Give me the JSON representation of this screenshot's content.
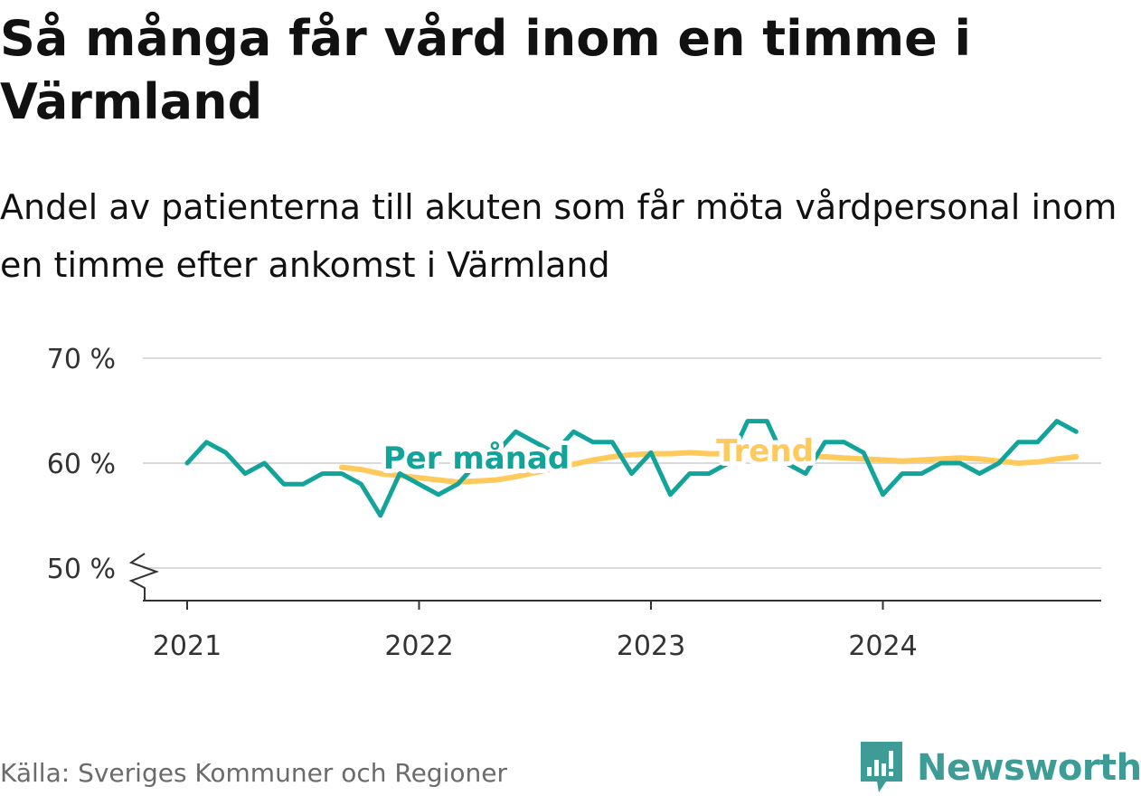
{
  "title": "Så många får vård inom en timme i Värmland",
  "subtitle": "Andel av patienterna till akuten som får möta vårdpersonal inom en timme efter ankomst i Värmland",
  "source": "Källa: Sveriges Kommuner och Regioner",
  "brand": {
    "name": "Newsworthy",
    "icon": "bar-chart-speech-bubble-icon",
    "color": "#3d9c96"
  },
  "colors": {
    "monthly": "#12a39a",
    "trend": "#ffc95c",
    "grid": "#d9d9d9",
    "axis": "#333333"
  },
  "chart_data": {
    "type": "line",
    "title": "Så många får vård inom en timme i Värmland",
    "subtitle": "Andel av patienterna till akuten som får möta vårdpersonal inom en timme efter ankomst i Värmland",
    "xlabel": "",
    "ylabel": "",
    "ylim": [
      50,
      70
    ],
    "y_ticks": [
      50,
      60,
      70
    ],
    "y_tick_labels": [
      "50 %",
      "60 %",
      "70 %"
    ],
    "y_axis_break": true,
    "x_ticks": [
      "2021",
      "2022",
      "2023",
      "2024"
    ],
    "grid": "horizontal",
    "legend": "inline labels",
    "series": [
      {
        "name": "Per månad",
        "color": "#12a39a",
        "x": [
          "2021-01",
          "2021-02",
          "2021-03",
          "2021-04",
          "2021-05",
          "2021-06",
          "2021-07",
          "2021-08",
          "2021-09",
          "2021-10",
          "2021-11",
          "2021-12",
          "2022-01",
          "2022-02",
          "2022-03",
          "2022-04",
          "2022-05",
          "2022-06",
          "2022-07",
          "2022-08",
          "2022-09",
          "2022-10",
          "2022-11",
          "2022-12",
          "2023-01",
          "2023-02",
          "2023-03",
          "2023-04",
          "2023-05",
          "2023-06",
          "2023-07",
          "2023-08",
          "2023-09",
          "2023-10",
          "2023-11",
          "2023-12",
          "2024-01",
          "2024-02",
          "2024-03",
          "2024-04",
          "2024-05",
          "2024-06",
          "2024-07",
          "2024-08",
          "2024-09",
          "2024-10",
          "2024-11"
        ],
        "values": [
          60,
          62,
          61,
          59,
          60,
          58,
          58,
          59,
          59,
          58,
          55,
          59,
          58,
          57,
          58,
          60,
          61,
          63,
          62,
          61,
          63,
          62,
          62,
          59,
          61,
          57,
          59,
          59,
          60,
          64,
          64,
          60,
          59,
          62,
          62,
          61,
          57,
          59,
          59,
          60,
          60,
          59,
          60,
          62,
          62,
          64,
          63
        ]
      },
      {
        "name": "Trend",
        "color": "#ffc95c",
        "x": [
          "2021-09",
          "2021-10",
          "2021-11",
          "2021-12",
          "2022-01",
          "2022-02",
          "2022-03",
          "2022-04",
          "2022-05",
          "2022-06",
          "2022-07",
          "2022-08",
          "2022-09",
          "2022-10",
          "2022-11",
          "2022-12",
          "2023-01",
          "2023-02",
          "2023-03",
          "2023-04",
          "2023-05",
          "2023-06",
          "2023-07",
          "2023-08",
          "2023-09",
          "2023-10",
          "2023-11",
          "2023-12",
          "2024-01",
          "2024-02",
          "2024-03",
          "2024-04",
          "2024-05",
          "2024-06",
          "2024-07",
          "2024-08",
          "2024-09",
          "2024-10",
          "2024-11"
        ],
        "values": [
          59.6,
          59.4,
          59.0,
          58.8,
          58.6,
          58.4,
          58.2,
          58.3,
          58.4,
          58.7,
          59.1,
          59.5,
          59.9,
          60.3,
          60.6,
          60.8,
          60.9,
          60.9,
          61.0,
          60.9,
          60.9,
          60.9,
          60.8,
          60.7,
          60.7,
          60.6,
          60.5,
          60.4,
          60.3,
          60.2,
          60.3,
          60.4,
          60.5,
          60.4,
          60.2,
          60.0,
          60.1,
          60.4,
          60.6
        ]
      }
    ]
  }
}
